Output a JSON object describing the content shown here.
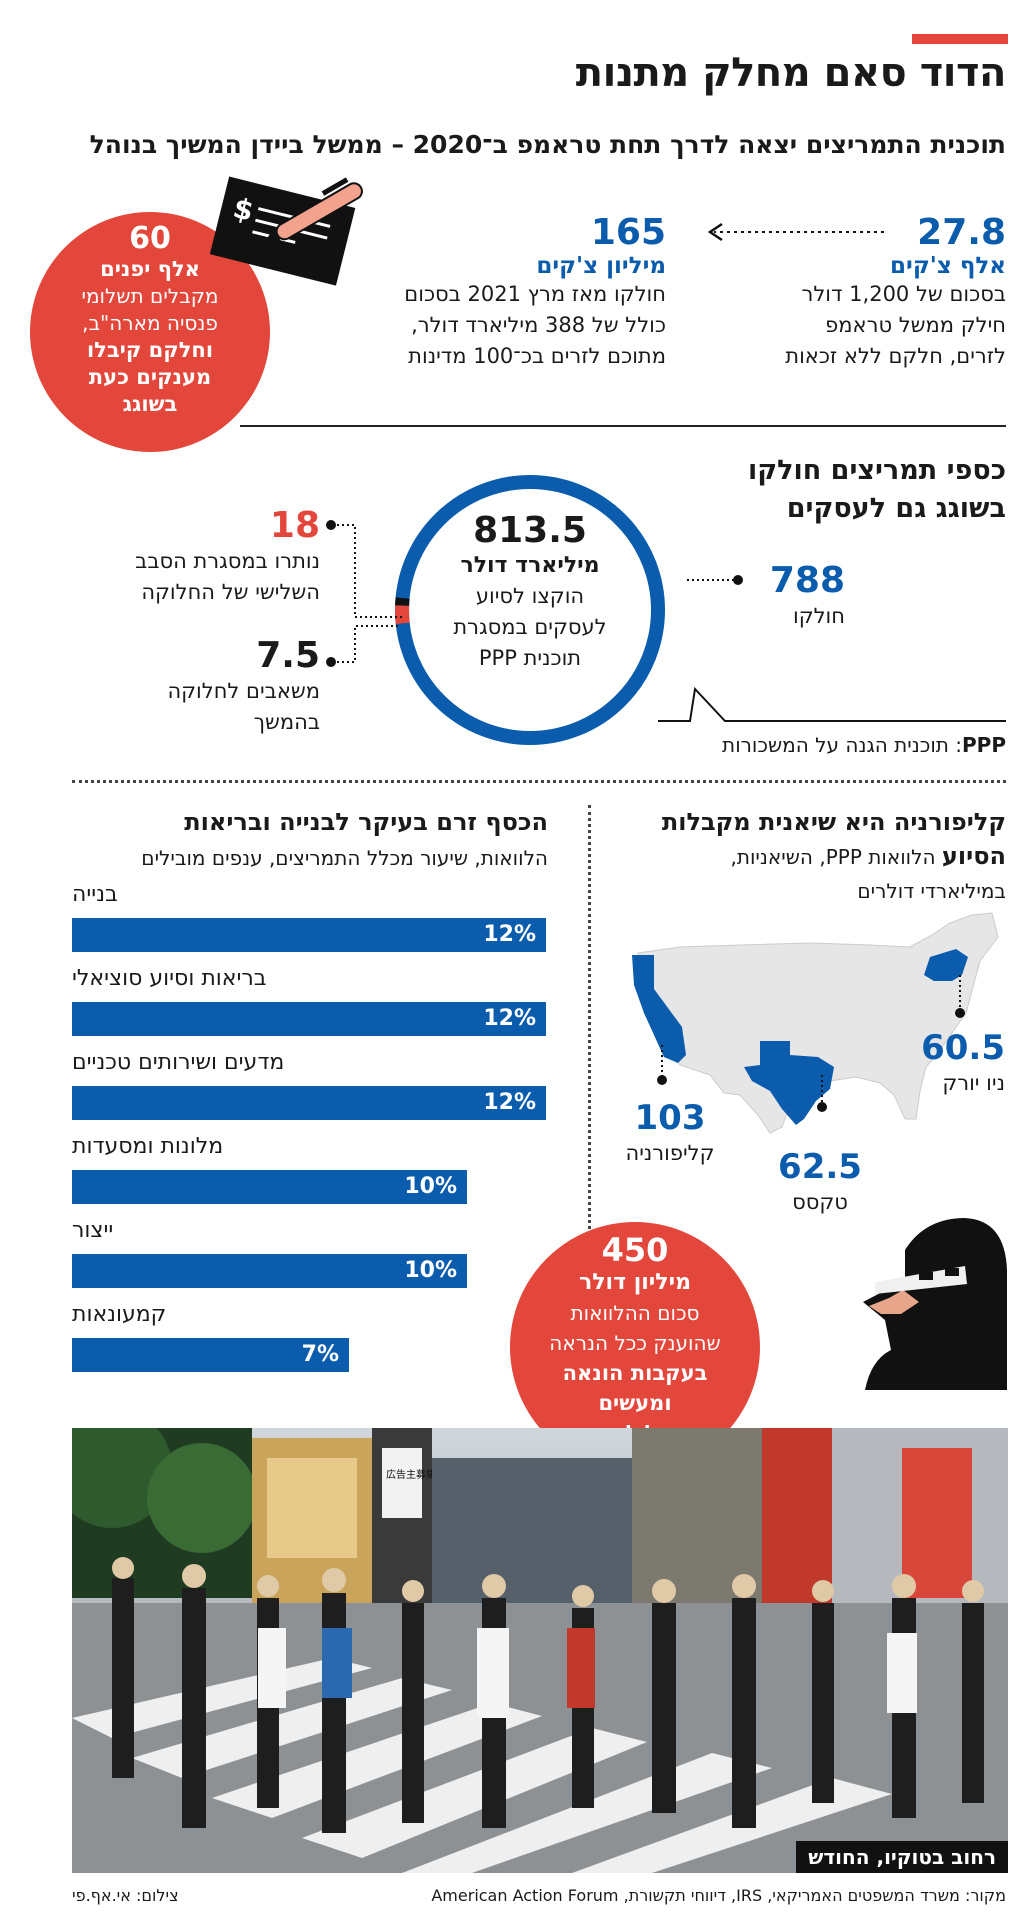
{
  "title": "הדוד סאם מחלק מתנות",
  "subtitle": "תוכנית התמריצים יצאה לדרך תחת טראמפ ב־2020 – ממשל ביידן המשיך בנוהל",
  "checks": {
    "trump": {
      "number": "27.8",
      "unit": "אלף צ'קים",
      "lines": [
        "בסכום של 1,200 דולר",
        "חילק ממשל טראמפ",
        "לזרים, חלקם ללא זכאות"
      ]
    },
    "biden": {
      "number": "165",
      "unit": "מיליון צ'קים",
      "lines": [
        "חולקו מאז מרץ 2021 בסכום",
        "כולל של 388 מיליארד דולר,",
        "מתוכם לזרים בכ־100 מדינות"
      ]
    },
    "japan_circle": {
      "number": "60",
      "bold_line": "אלף יפנים",
      "lines": [
        "מקבלים תשלומי",
        "פנסיה מארה\"ב,"
      ],
      "bold_lines": [
        "וחלקם קיבלו",
        "מענקים כעת",
        "בשוגג"
      ]
    }
  },
  "business": {
    "heading_lines": [
      "כספי תמריצים חולקו",
      "בשוגג גם לעסקים"
    ],
    "center": {
      "number": "813.5",
      "unit": "מיליארד דולר",
      "lines": [
        "הוקצו לסיוע",
        "לעסקים במסגרת",
        "תוכנית PPP"
      ]
    },
    "distributed": {
      "number": "788",
      "label": "חולקו"
    },
    "returned": {
      "number": "18",
      "lines": [
        "נותרו במסגרת הסבב",
        "השלישי של החלוקה"
      ]
    },
    "future": {
      "number": "7.5",
      "lines": [
        "משאבים לחלוקה",
        "בהמשך"
      ]
    },
    "ppp_note": {
      "term": "PPP",
      "text": ": תוכנית הגנה על המשכורות"
    },
    "ring_values": {
      "total": 813.5,
      "distributed": 788,
      "returned": 18,
      "future": 7.5
    },
    "colors": {
      "distributed": "#0b5cad",
      "returned": "#e3463a",
      "future": "#111111"
    }
  },
  "california": {
    "heading_bold": [
      "קליפורניה היא שיאנית מקבלות",
      "הסיוע"
    ],
    "heading_rest": " הלוואות PPP, השיאניות,",
    "heading_line3": "במיליארדי דולרים",
    "states": [
      {
        "name": "ניו יורק",
        "value": "60.5"
      },
      {
        "name": "קליפורניה",
        "value": "103"
      },
      {
        "name": "טקסס",
        "value": "62.5"
      }
    ]
  },
  "sectors": {
    "heading": "הכסף זרם בעיקר לבנייה ובריאות",
    "subheading": "הלוואות, שיעור מכלל התמריצים, ענפים מובילים",
    "items": [
      {
        "label": "בנייה",
        "value": "12%",
        "pct": 12
      },
      {
        "label": "בריאות וסיוע סוציאלי",
        "value": "12%",
        "pct": 12
      },
      {
        "label": "מדעים ושירותים טכניים",
        "value": "12%",
        "pct": 12
      },
      {
        "label": "מלונות ומסעדות",
        "value": "10%",
        "pct": 10
      },
      {
        "label": "ייצור",
        "value": "10%",
        "pct": 10
      },
      {
        "label": "קמעונאות",
        "value": "7%",
        "pct": 7
      }
    ]
  },
  "fraud": {
    "number": "450",
    "unit": "מיליון דולר",
    "lines": [
      "סכום ההלוואות",
      "שהוענק ככל הנראה"
    ],
    "bold_lines": [
      "בעקבות הונאה",
      "ומעשים",
      "פליליים"
    ]
  },
  "photo": {
    "caption": "רחוב בטוקיו, החודש",
    "sign_text": "広告主募集"
  },
  "source": "מקור: משרד המשפטים האמריקאי, IRS, דיווחי תקשורת, American Action Forum",
  "credit": "צילום: אי.אף.פי",
  "icons": [
    "dollar-check-icon",
    "pen-icon",
    "arrow-left-icon",
    "us-map-icon",
    "burglar-icon"
  ]
}
